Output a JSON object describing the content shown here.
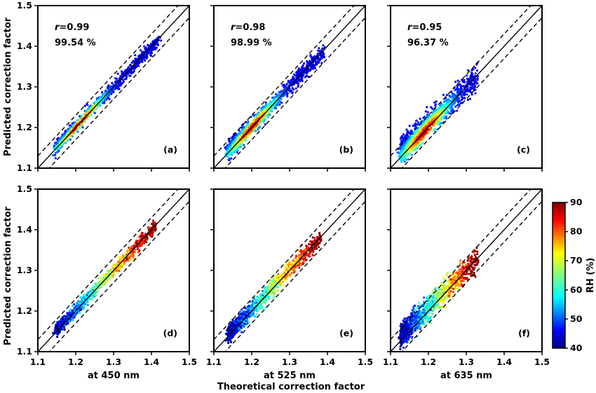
{
  "chart_data": {
    "type": "scatter",
    "xlim": [
      1.1,
      1.5
    ],
    "ylim": [
      1.1,
      1.5
    ],
    "ticks": [
      1.1,
      1.2,
      1.3,
      1.4,
      1.5
    ],
    "tick_labels": [
      "1.1",
      "1.2",
      "1.3",
      "1.4",
      "1.5"
    ],
    "ylabel": "Predicted correction factor",
    "xlabel": "Theoretical correction factor",
    "reference_lines": {
      "one_to_one": 1.0,
      "dashed_offsets": [
        -0.03,
        0.03
      ]
    },
    "colorbar": {
      "label": "RH (%)",
      "min": 40,
      "max": 90,
      "ticks": [
        "40",
        "50",
        "60",
        "70",
        "80",
        "90"
      ],
      "colormap": "jet"
    },
    "panels": [
      {
        "label": "(a)",
        "wavelength_label": "",
        "r_label": "r",
        "r_value": "=0.99",
        "percent": "99.54 %",
        "color_by": "density",
        "x_range": [
          1.15,
          1.42
        ],
        "slope": 0.985,
        "offset": 0.003,
        "spread": 0.007
      },
      {
        "label": "(b)",
        "wavelength_label": "",
        "r_label": "r",
        "r_value": "=0.98",
        "percent": "98.99 %",
        "color_by": "density",
        "x_range": [
          1.14,
          1.39
        ],
        "slope": 0.99,
        "offset": 0.004,
        "spread": 0.01
      },
      {
        "label": "(c)",
        "wavelength_label": "",
        "r_label": "r",
        "r_value": "=0.95",
        "percent": "96.37 %",
        "color_by": "density",
        "x_range": [
          1.13,
          1.33
        ],
        "slope": 0.98,
        "offset": 0.012,
        "spread": 0.014
      },
      {
        "label": "(d)",
        "wavelength_label": "at 450 nm",
        "r_label": "",
        "r_value": "",
        "percent": "",
        "color_by": "RH",
        "x_range": [
          1.15,
          1.41
        ],
        "slope": 0.985,
        "offset": 0.003,
        "spread": 0.007
      },
      {
        "label": "(e)",
        "wavelength_label": "at 525 nm",
        "r_label": "",
        "r_value": "",
        "percent": "",
        "color_by": "RH",
        "x_range": [
          1.14,
          1.38
        ],
        "slope": 0.99,
        "offset": 0.004,
        "spread": 0.01
      },
      {
        "label": "(f)",
        "wavelength_label": "at 635 nm",
        "r_label": "",
        "r_value": "",
        "percent": "",
        "color_by": "RH",
        "x_range": [
          1.13,
          1.33
        ],
        "slope": 0.98,
        "offset": 0.012,
        "spread": 0.014
      }
    ]
  }
}
